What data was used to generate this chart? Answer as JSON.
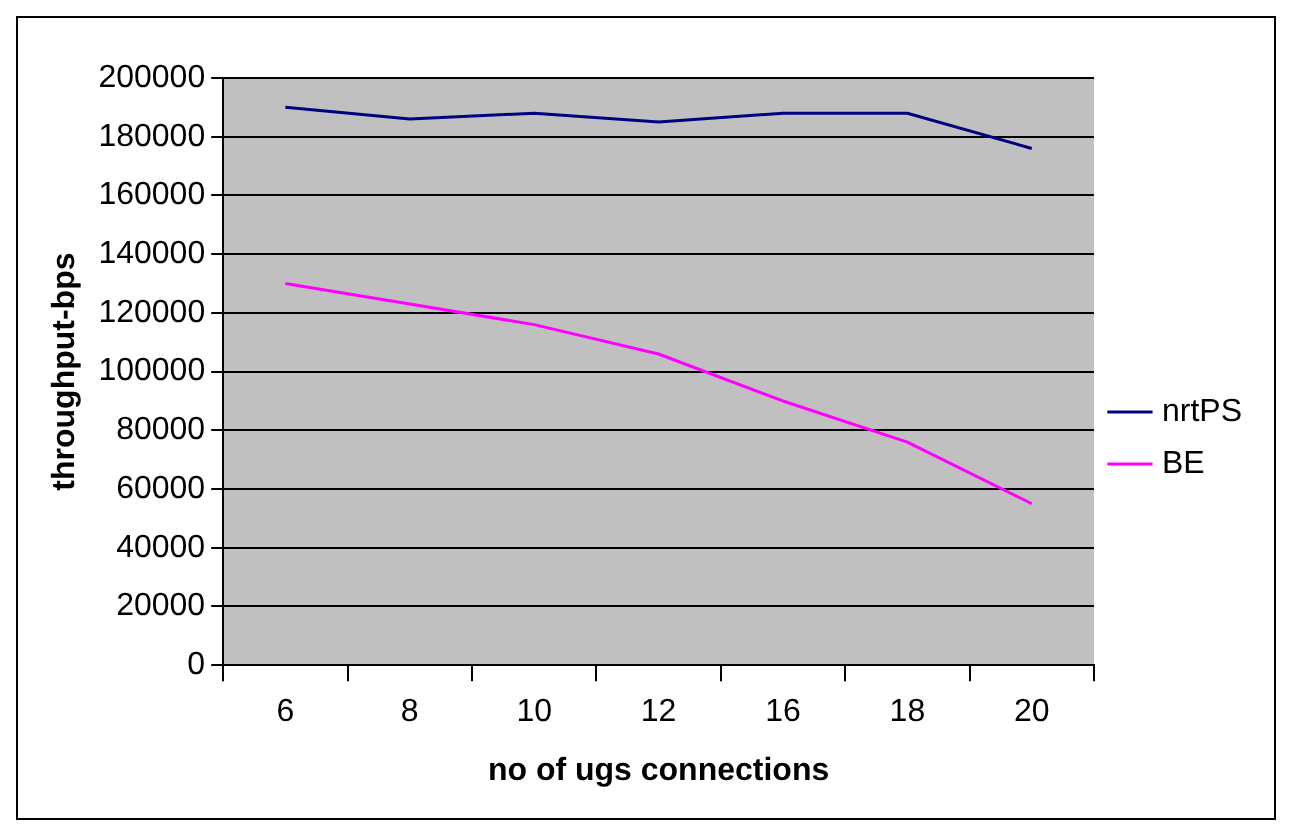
{
  "chart_data": {
    "type": "line",
    "xlabel": "no of ugs connections",
    "ylabel": "throughput-bps",
    "categories": [
      "6",
      "8",
      "10",
      "12",
      "16",
      "18",
      "20"
    ],
    "series": [
      {
        "name": "nrtPS",
        "color": "#000080",
        "values": [
          190000,
          186000,
          188000,
          185000,
          188000,
          188000,
          176000
        ]
      },
      {
        "name": "BE",
        "color": "#ff00ff",
        "values": [
          130000,
          123000,
          116000,
          106000,
          90000,
          76000,
          55000
        ]
      }
    ],
    "ylim": [
      0,
      200000
    ],
    "yticks": [
      0,
      20000,
      40000,
      60000,
      80000,
      100000,
      120000,
      140000,
      160000,
      180000,
      200000
    ],
    "grid": "y",
    "legend": "right",
    "marker": "none"
  }
}
